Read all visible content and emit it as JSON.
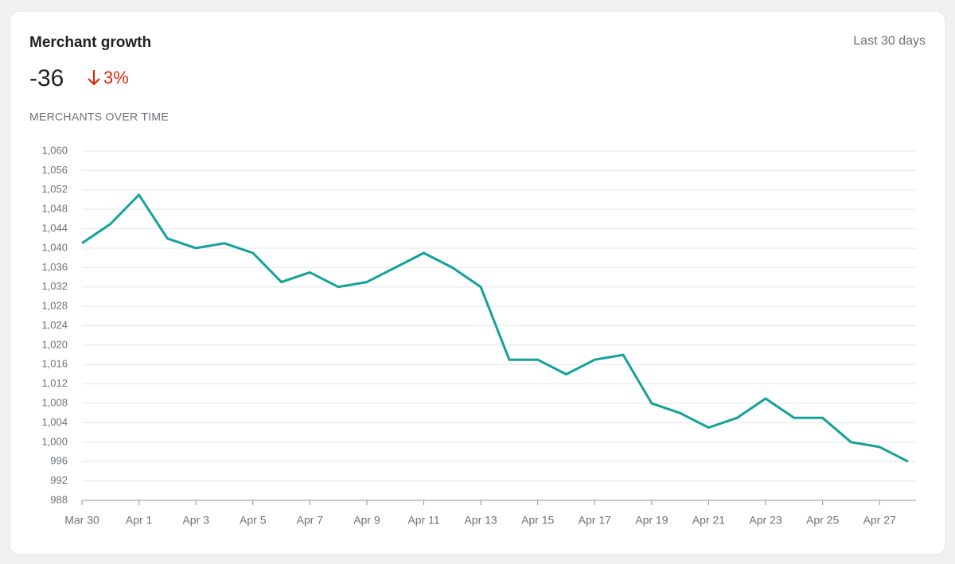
{
  "chart_data": {
    "type": "line",
    "title": "Merchant growth",
    "period": "Last 30 days",
    "kpi": -36,
    "change": {
      "value": 3,
      "label": "3%"
    },
    "subtitle": "MERCHANTS OVER TIME",
    "categories": [
      "Mar 30",
      null,
      "Apr 1",
      null,
      "Apr 3",
      null,
      "Apr 5",
      null,
      "Apr 7",
      null,
      "Apr 9",
      null,
      "Apr 11",
      null,
      "Apr 13",
      null,
      "Apr 15",
      null,
      "Apr 17",
      null,
      "Apr 19",
      null,
      "Apr 21",
      null,
      "Apr 23",
      null,
      "Apr 25",
      null,
      "Apr 27",
      null
    ],
    "values": [
      1041,
      1045,
      1051,
      1042,
      1040,
      1041,
      1039,
      1033,
      1035,
      1032,
      1033,
      1036,
      1039,
      1036,
      1032,
      1017,
      1017,
      1014,
      1017,
      1018,
      1008,
      1006,
      1003,
      1005,
      1009,
      1005,
      1005,
      1000,
      999,
      996
    ],
    "color": "#13a19c",
    "ylim": [
      988,
      1060
    ],
    "yticks": [
      988,
      992,
      996,
      {
        "value": 1000,
        "label": "1,000"
      },
      {
        "value": 1004,
        "label": "1,004"
      },
      {
        "value": 1008,
        "label": "1,008"
      },
      {
        "value": 1012,
        "label": "1,012"
      },
      {
        "value": 1016,
        "label": "1,016"
      },
      {
        "value": 1020,
        "label": "1,020"
      },
      {
        "value": 1024,
        "label": "1,024"
      },
      {
        "value": 1028,
        "label": "1,028"
      },
      {
        "value": 1032,
        "label": "1,032"
      },
      {
        "value": 1036,
        "label": "1,036"
      },
      {
        "value": 1040,
        "label": "1,040"
      },
      {
        "value": 1044,
        "label": "1,044"
      },
      {
        "value": 1048,
        "label": "1,048"
      },
      {
        "value": 1052,
        "label": "1,052"
      },
      {
        "value": 1056,
        "label": "1,056"
      },
      {
        "value": 1060,
        "label": "1,060"
      }
    ],
    "grid": true
  }
}
